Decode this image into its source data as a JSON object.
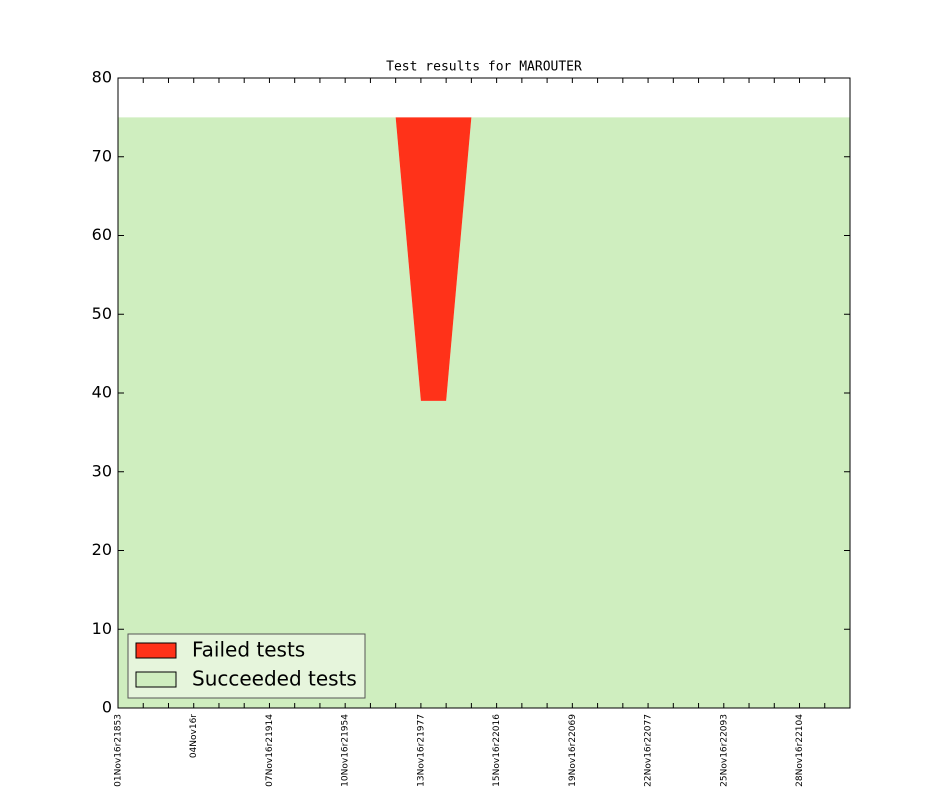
{
  "chart_data": {
    "type": "stacked_area",
    "title": "Test results for MAROUTER",
    "categories": [
      "01Nov16r21853",
      null,
      null,
      "04Nov16r",
      null,
      null,
      "07Nov16r21914",
      null,
      null,
      "10Nov16r21954",
      null,
      null,
      "13Nov16r21977",
      null,
      null,
      "15Nov16r22016",
      null,
      null,
      "19Nov16r22069",
      null,
      null,
      "22Nov16r22077",
      null,
      null,
      "25Nov16r22093",
      null,
      null,
      "28Nov16r22104",
      null,
      null
    ],
    "series": [
      {
        "name": "Failed tests",
        "color": "#ff3219",
        "values": [
          0,
          0,
          0,
          0,
          0,
          0,
          0,
          0,
          0,
          0,
          0,
          0,
          36,
          36,
          0,
          0,
          0,
          0,
          0,
          0,
          0,
          0,
          0,
          0,
          0,
          0,
          0,
          0,
          0,
          0
        ]
      },
      {
        "name": "Succeeded tests",
        "color": "#cfeebf",
        "values": [
          75,
          75,
          75,
          75,
          75,
          75,
          75,
          75,
          75,
          75,
          75,
          75,
          39,
          39,
          75,
          75,
          75,
          75,
          75,
          75,
          75,
          75,
          75,
          75,
          75,
          75,
          75,
          75,
          75,
          75
        ]
      }
    ],
    "ylim": [
      0,
      80
    ],
    "yticks": [
      0,
      10,
      20,
      30,
      40,
      50,
      60,
      70,
      80
    ],
    "grid": false,
    "legend": "lower left"
  }
}
